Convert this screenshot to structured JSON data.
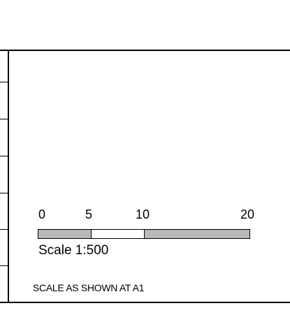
{
  "scale_bar": {
    "labels": [
      "0",
      "5",
      "10",
      "20"
    ],
    "segments": [
      {
        "from": 0,
        "to": 5,
        "color": "#b8b8b8"
      },
      {
        "from": 5,
        "to": 10,
        "color": "#ffffff"
      },
      {
        "from": 10,
        "to": 20,
        "color": "#b8b8b8"
      }
    ],
    "max": 20,
    "ratio_text": "Scale 1:500"
  },
  "note": "SCALE AS SHOWN AT A1"
}
